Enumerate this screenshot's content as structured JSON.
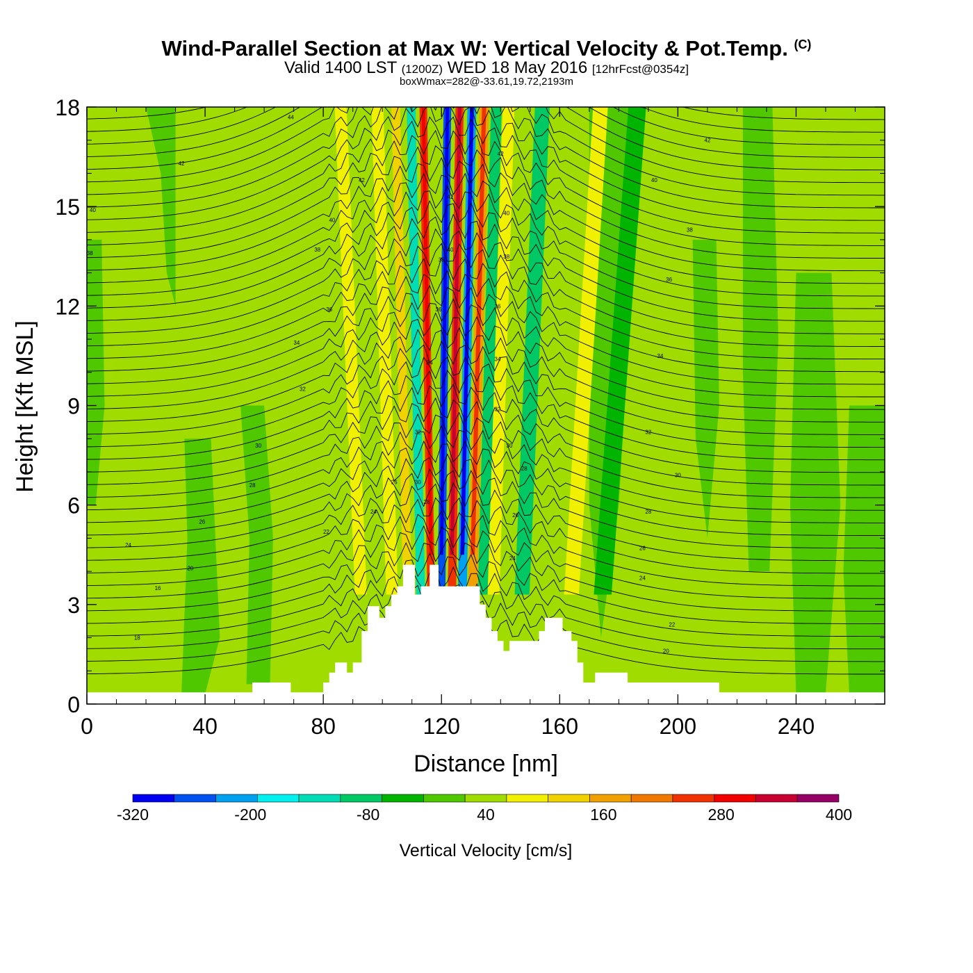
{
  "title": {
    "main": "Wind-Parallel Section at Max W: Vertical Velocity & Pot.Temp.",
    "copyright": "(C)",
    "valid_prefix": "Valid 1400 LST",
    "valid_utc": "(1200Z)",
    "valid_date": "WED 18 May 2016",
    "forecast": "[12hrFcst@0354z]",
    "box_max": "boxWmax=282@-33.61,19.72,2193m"
  },
  "chart_data": {
    "type": "heatmap",
    "xlabel": "Distance [nm]",
    "ylabel": "Height [Kft MSL]",
    "xlim": [
      0,
      270
    ],
    "ylim": [
      0,
      18
    ],
    "x_ticks": [
      0,
      40,
      80,
      120,
      160,
      200,
      240
    ],
    "y_ticks": [
      0,
      3,
      6,
      9,
      12,
      15,
      18
    ],
    "colorbar": {
      "title": "Vertical Velocity [cm/s]",
      "labels": [
        "-320",
        "-200",
        "-80",
        "40",
        "160",
        "280",
        "400"
      ],
      "range": [
        -320,
        400
      ],
      "colors": [
        "#0000f0",
        "#0050f0",
        "#00a0f0",
        "#00f0f0",
        "#00dcb4",
        "#00c864",
        "#00b400",
        "#50c800",
        "#a0dc00",
        "#f0f000",
        "#f0d200",
        "#f0a000",
        "#f07800",
        "#f03200",
        "#f00000",
        "#c80032",
        "#960064"
      ]
    },
    "vertical_velocity_bands": [
      {
        "x": 89,
        "w": 2,
        "value": 100
      },
      {
        "x": 101,
        "w": 2,
        "value": 70
      },
      {
        "x": 107,
        "w": 1.5,
        "value": 130
      },
      {
        "x": 112,
        "w": 1.5,
        "value": -150
      },
      {
        "x": 116,
        "w": 1.3,
        "value": 240
      },
      {
        "x": 120,
        "w": 1.3,
        "value": -250
      },
      {
        "x": 124,
        "w": 1.4,
        "value": 270
      },
      {
        "x": 128,
        "w": 1.5,
        "value": -230
      },
      {
        "x": 132,
        "w": 1.6,
        "value": 180
      },
      {
        "x": 136,
        "w": 1.8,
        "value": -90
      },
      {
        "x": 140,
        "w": 2,
        "value": 100
      },
      {
        "x": 151,
        "w": 2.5,
        "value": -80
      },
      {
        "x": 170,
        "w": 2.5,
        "value": 80
      },
      {
        "x": 182,
        "w": 3,
        "value": -50
      }
    ],
    "terrain": [
      [
        0,
        0.35
      ],
      [
        56,
        0.35
      ],
      [
        56,
        0.65
      ],
      [
        69,
        0.65
      ],
      [
        69,
        0.35
      ],
      [
        80,
        0.35
      ],
      [
        80,
        0.65
      ],
      [
        82,
        0.65
      ],
      [
        82,
        0.95
      ],
      [
        84,
        0.95
      ],
      [
        84,
        1.25
      ],
      [
        88,
        1.25
      ],
      [
        88,
        0.95
      ],
      [
        90,
        0.95
      ],
      [
        90,
        1.25
      ],
      [
        93,
        1.25
      ],
      [
        93,
        2.2
      ],
      [
        95,
        2.2
      ],
      [
        95,
        2.95
      ],
      [
        99,
        2.95
      ],
      [
        99,
        2.6
      ],
      [
        101,
        2.6
      ],
      [
        101,
        2.95
      ],
      [
        103,
        2.95
      ],
      [
        103,
        3.3
      ],
      [
        105,
        3.3
      ],
      [
        105,
        3.55
      ],
      [
        107,
        3.55
      ],
      [
        107,
        4.2
      ],
      [
        111,
        4.2
      ],
      [
        111,
        3.3
      ],
      [
        113,
        3.3
      ],
      [
        113,
        3.55
      ],
      [
        116,
        3.55
      ],
      [
        116,
        4.2
      ],
      [
        119,
        4.2
      ],
      [
        119,
        3.55
      ],
      [
        133,
        3.55
      ],
      [
        133,
        3.0
      ],
      [
        135,
        3.0
      ],
      [
        135,
        2.6
      ],
      [
        137,
        2.6
      ],
      [
        137,
        2.2
      ],
      [
        139,
        2.2
      ],
      [
        139,
        1.9
      ],
      [
        141,
        1.9
      ],
      [
        141,
        1.6
      ],
      [
        143,
        1.6
      ],
      [
        143,
        1.9
      ],
      [
        146,
        1.9
      ],
      [
        146,
        1.9
      ],
      [
        153,
        1.9
      ],
      [
        153,
        2.2
      ],
      [
        155,
        2.2
      ],
      [
        155,
        2.6
      ],
      [
        161,
        2.6
      ],
      [
        161,
        2.2
      ],
      [
        164,
        2.2
      ],
      [
        164,
        1.9
      ],
      [
        166,
        1.9
      ],
      [
        166,
        1.25
      ],
      [
        168,
        1.25
      ],
      [
        168,
        0.65
      ],
      [
        172,
        0.65
      ],
      [
        172,
        0.95
      ],
      [
        183,
        0.95
      ],
      [
        183,
        0.65
      ],
      [
        214,
        0.65
      ],
      [
        214,
        0.35
      ],
      [
        270,
        0.35
      ]
    ],
    "theta_contour_labels": [
      {
        "x": 69,
        "y": 17.7,
        "text": "44"
      },
      {
        "x": 32,
        "y": 16.3,
        "text": "42"
      },
      {
        "x": 93,
        "y": 15.8,
        "text": "42"
      },
      {
        "x": 2,
        "y": 14.9,
        "text": "40"
      },
      {
        "x": 83,
        "y": 14.6,
        "text": "40"
      },
      {
        "x": 1,
        "y": 13.6,
        "text": "38"
      },
      {
        "x": 78,
        "y": 13.7,
        "text": "38"
      },
      {
        "x": 82,
        "y": 11.9,
        "text": "36"
      },
      {
        "x": 71,
        "y": 10.9,
        "text": "34"
      },
      {
        "x": 73,
        "y": 9.5,
        "text": "32"
      },
      {
        "x": 58,
        "y": 7.8,
        "text": "30"
      },
      {
        "x": 56,
        "y": 6.6,
        "text": "28"
      },
      {
        "x": 39,
        "y": 5.5,
        "text": "26"
      },
      {
        "x": 14,
        "y": 4.8,
        "text": "24"
      },
      {
        "x": 35,
        "y": 4.1,
        "text": "20"
      },
      {
        "x": 24,
        "y": 3.5,
        "text": "16"
      },
      {
        "x": 17,
        "y": 2.0,
        "text": "18"
      },
      {
        "x": 81,
        "y": 5.2,
        "text": "22"
      },
      {
        "x": 97,
        "y": 5.8,
        "text": "24"
      },
      {
        "x": 104,
        "y": 6.7,
        "text": "26"
      },
      {
        "x": 112,
        "y": 8.2,
        "text": "32"
      },
      {
        "x": 112,
        "y": 6.7,
        "text": "30"
      },
      {
        "x": 115,
        "y": 6.1,
        "text": "28"
      },
      {
        "x": 116,
        "y": 10.3,
        "text": "34"
      },
      {
        "x": 119,
        "y": 11.9,
        "text": "36"
      },
      {
        "x": 120,
        "y": 13.4,
        "text": "38"
      },
      {
        "x": 123,
        "y": 13.7,
        "text": "40"
      },
      {
        "x": 123,
        "y": 15.3,
        "text": "42"
      },
      {
        "x": 140,
        "y": 16.6,
        "text": "42"
      },
      {
        "x": 142,
        "y": 14.8,
        "text": "40"
      },
      {
        "x": 142,
        "y": 13.5,
        "text": "38"
      },
      {
        "x": 139,
        "y": 12.0,
        "text": "36"
      },
      {
        "x": 139,
        "y": 10.4,
        "text": "34"
      },
      {
        "x": 139,
        "y": 8.9,
        "text": "32"
      },
      {
        "x": 143,
        "y": 7.8,
        "text": "30"
      },
      {
        "x": 148,
        "y": 7.1,
        "text": "28"
      },
      {
        "x": 145,
        "y": 5.7,
        "text": "26"
      },
      {
        "x": 144,
        "y": 4.4,
        "text": "24"
      },
      {
        "x": 210,
        "y": 17.0,
        "text": "42"
      },
      {
        "x": 192,
        "y": 15.8,
        "text": "40"
      },
      {
        "x": 204,
        "y": 14.3,
        "text": "38"
      },
      {
        "x": 197,
        "y": 12.8,
        "text": "36"
      },
      {
        "x": 194,
        "y": 10.5,
        "text": "34"
      },
      {
        "x": 190,
        "y": 8.2,
        "text": "32"
      },
      {
        "x": 200,
        "y": 6.9,
        "text": "30"
      },
      {
        "x": 190,
        "y": 5.8,
        "text": "28"
      },
      {
        "x": 188,
        "y": 4.7,
        "text": "26"
      },
      {
        "x": 188,
        "y": 3.8,
        "text": "24"
      },
      {
        "x": 198,
        "y": 2.4,
        "text": "22"
      },
      {
        "x": 196,
        "y": 1.6,
        "text": "20"
      }
    ]
  }
}
